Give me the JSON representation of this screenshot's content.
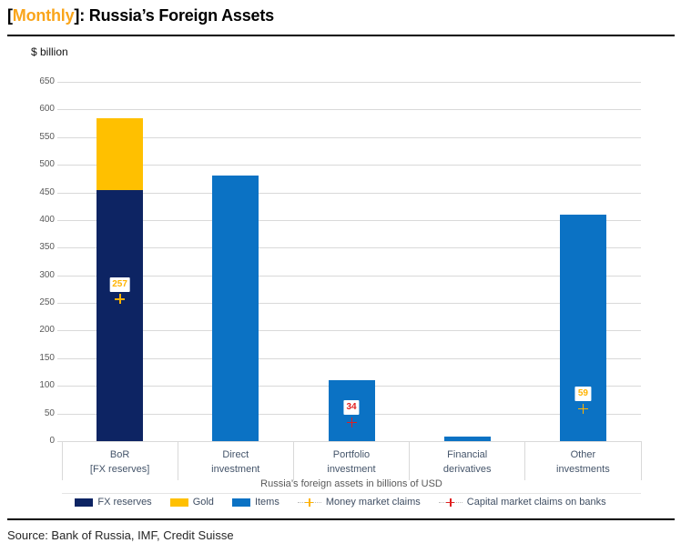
{
  "header": {
    "bracket_open": "[",
    "highlight": "Monthly",
    "bracket_close": "]",
    "rest": ": Russia’s Foreign Assets"
  },
  "chart": {
    "unit_label": "$ billion"
  },
  "chart_data": {
    "type": "bar",
    "stacked": true,
    "title": "[Monthly]: Russia’s Foreign Assets",
    "ylabel": "$ billion",
    "xlabel": "Russia’s foreign assets in billions of USD",
    "ylim": [
      0,
      650
    ],
    "ytick_interval": 50,
    "grid": true,
    "legend_position": "bottom",
    "categories": [
      "BoR [FX reserves]",
      "Direct investment",
      "Portfolio investment",
      "Financial derivatives",
      "Other investments"
    ],
    "category_lines": [
      [
        "BoR",
        "[FX reserves]"
      ],
      [
        "Direct",
        "investment"
      ],
      [
        "Portfolio",
        "investment"
      ],
      [
        "Financial",
        "derivatives"
      ],
      [
        "Other",
        "investments"
      ]
    ],
    "series": [
      {
        "name": "FX reserves",
        "color": "#0D2463",
        "values": [
          455,
          0,
          0,
          0,
          0
        ]
      },
      {
        "name": "Gold",
        "color": "#FFC000",
        "values": [
          130,
          0,
          0,
          0,
          0
        ]
      },
      {
        "name": "Items",
        "color": "#0B72C4",
        "values": [
          0,
          480,
          110,
          8,
          410
        ]
      }
    ],
    "markers": [
      {
        "name": "Money market claims",
        "color": "#FFB300",
        "points": [
          {
            "category_index": 0,
            "value": 257
          },
          {
            "category_index": 4,
            "value": 59
          }
        ]
      },
      {
        "name": "Capital market claims on banks",
        "color": "#E02020",
        "points": [
          {
            "category_index": 2,
            "value": 34
          }
        ]
      }
    ],
    "legend_items": [
      {
        "label": "FX reserves",
        "type": "swatch",
        "color": "#0D2463"
      },
      {
        "label": "Gold",
        "type": "swatch",
        "color": "#FFC000"
      },
      {
        "label": "Items",
        "type": "swatch",
        "color": "#0B72C4"
      },
      {
        "label": "Money market claims",
        "type": "marker",
        "color": "#FFB300"
      },
      {
        "label": "Capital market claims on banks",
        "type": "marker",
        "color": "#E02020"
      }
    ]
  },
  "footer": {
    "source": "Source: Bank of Russia, IMF, Credit Suisse"
  }
}
